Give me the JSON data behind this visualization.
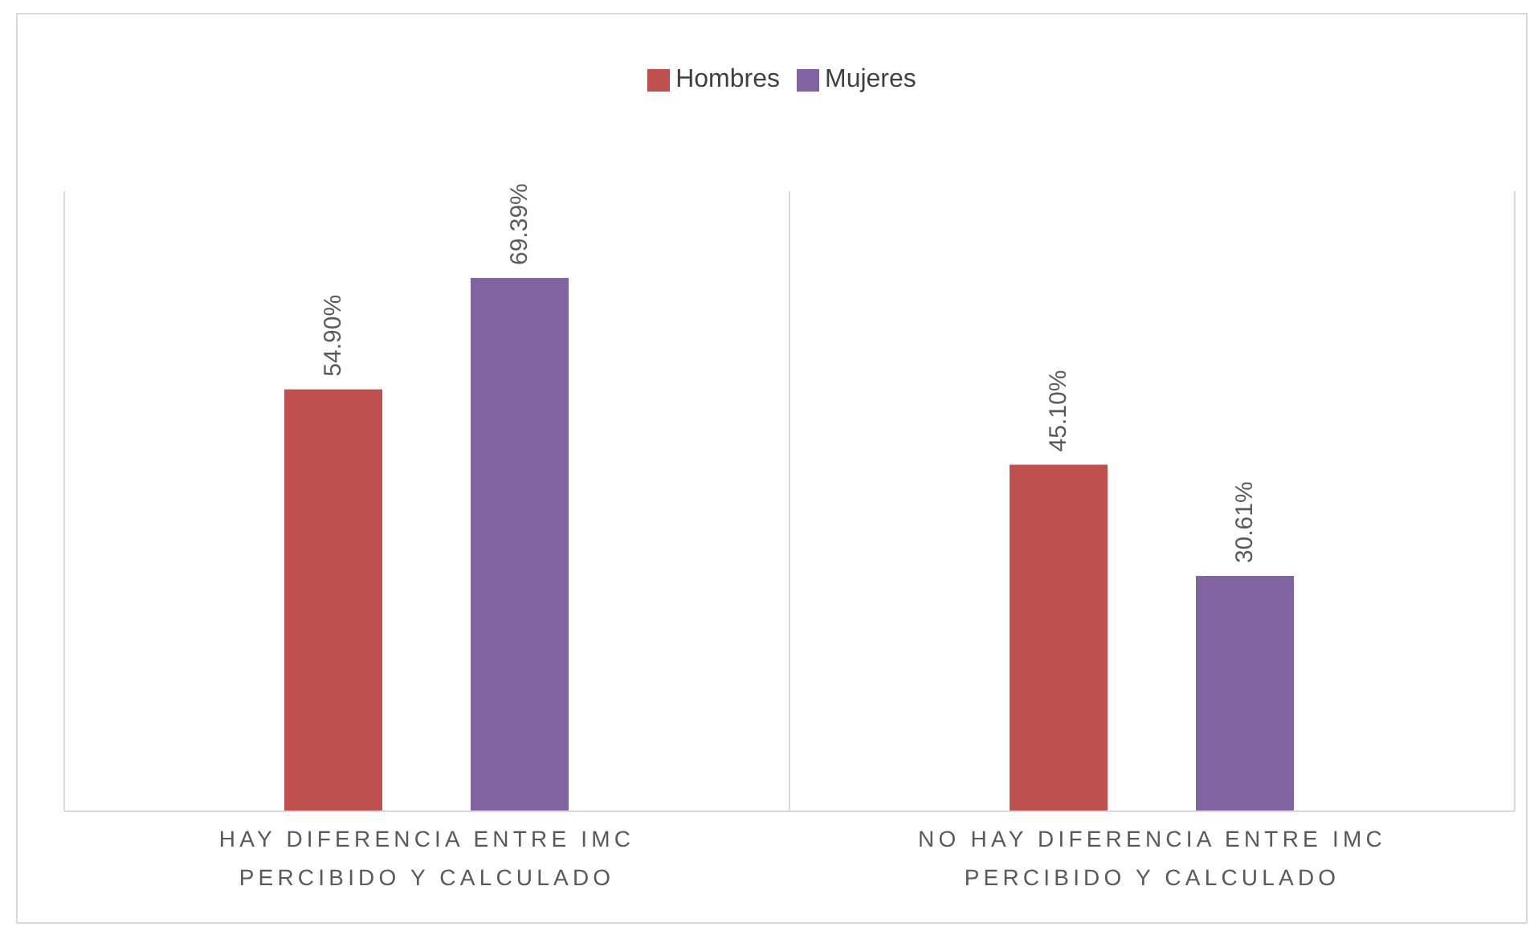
{
  "chart_data": {
    "type": "bar",
    "categories": [
      "HAY DIFERENCIA ENTRE IMC PERCIBIDO Y CALCULADO",
      "NO HAY DIFERENCIA ENTRE IMC PERCIBIDO Y CALCULADO"
    ],
    "series": [
      {
        "name": "Hombres",
        "color": "#c0504d",
        "values": [
          54.9,
          45.1
        ],
        "value_labels": [
          "54.90%",
          "45.10%"
        ]
      },
      {
        "name": "Mujeres",
        "color": "#8064a2",
        "values": [
          69.39,
          30.61
        ],
        "value_labels": [
          "69.39%",
          "30.61%"
        ]
      }
    ],
    "legend": "top",
    "grid": false
  }
}
